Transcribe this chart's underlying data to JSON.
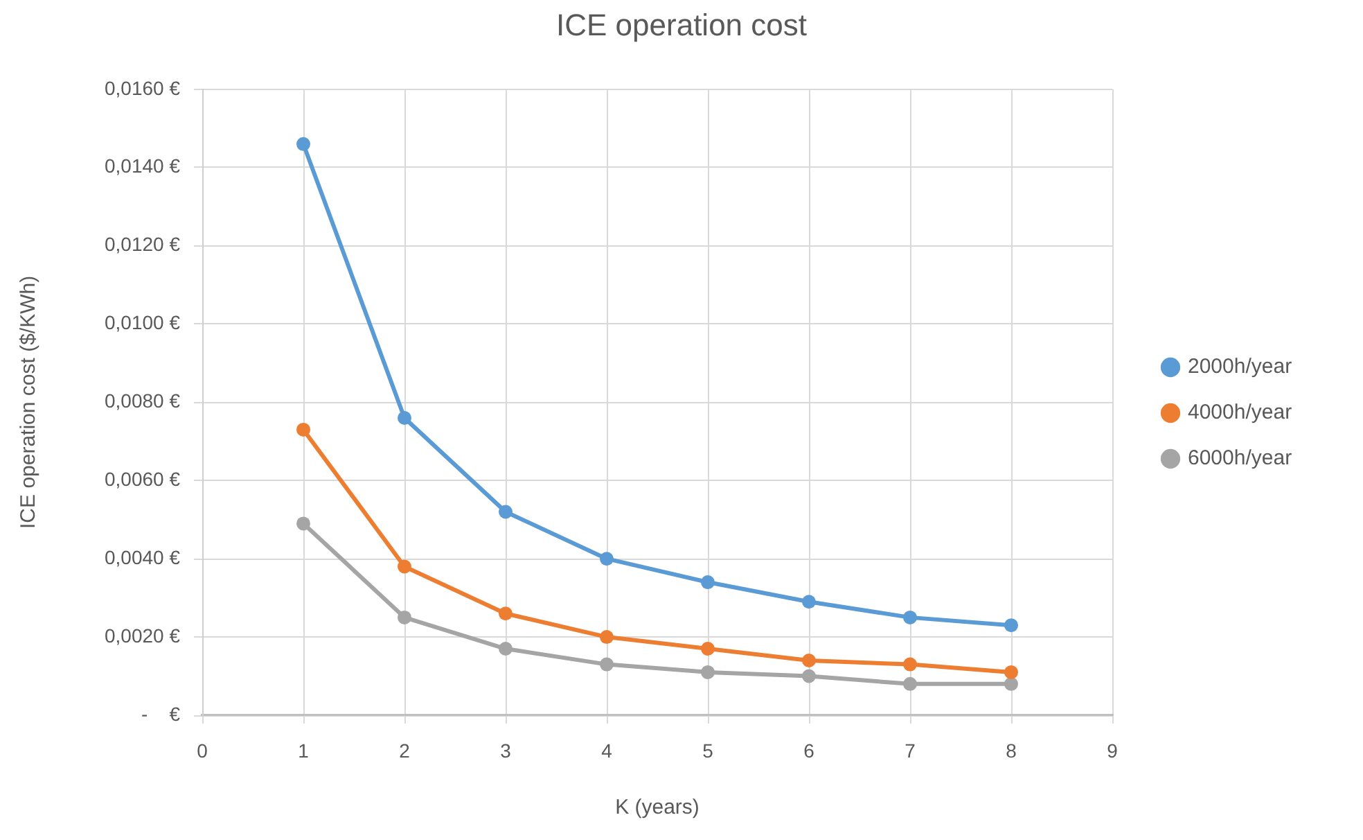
{
  "chart_data": {
    "type": "line",
    "title": "ICE operation cost",
    "xlabel": "K (years)",
    "ylabel": "ICE operation cost ($/KWh)",
    "x": [
      1,
      2,
      3,
      4,
      5,
      6,
      7,
      8
    ],
    "series": [
      {
        "name": "2000h/year",
        "color": "#5b9bd5",
        "values": [
          0.0146,
          0.0076,
          0.0052,
          0.004,
          0.0034,
          0.0029,
          0.0025,
          0.0023
        ]
      },
      {
        "name": "4000h/year",
        "color": "#ed7d31",
        "values": [
          0.0073,
          0.0038,
          0.0026,
          0.002,
          0.0017,
          0.0014,
          0.0013,
          0.0011
        ]
      },
      {
        "name": "6000h/year",
        "color": "#a5a5a5",
        "values": [
          0.0049,
          0.0025,
          0.0017,
          0.0013,
          0.0011,
          0.001,
          0.0008,
          0.0008
        ]
      }
    ],
    "xlim": [
      0,
      9
    ],
    "xticks": [
      0,
      1,
      2,
      3,
      4,
      5,
      6,
      7,
      8,
      9
    ],
    "ylim": [
      0,
      0.016
    ],
    "yticks": [
      {
        "value": 0,
        "label": "-    €"
      },
      {
        "value": 0.002,
        "label": "0,0020 €"
      },
      {
        "value": 0.004,
        "label": "0,0040 €"
      },
      {
        "value": 0.006,
        "label": "0,0060 €"
      },
      {
        "value": 0.008,
        "label": "0,0080 €"
      },
      {
        "value": 0.01,
        "label": "0,0100 €"
      },
      {
        "value": 0.012,
        "label": "0,0120 €"
      },
      {
        "value": 0.014,
        "label": "0,0140 €"
      },
      {
        "value": 0.016,
        "label": "0,0160 €"
      }
    ],
    "grid": true,
    "legend": "right",
    "marker": "circle"
  }
}
